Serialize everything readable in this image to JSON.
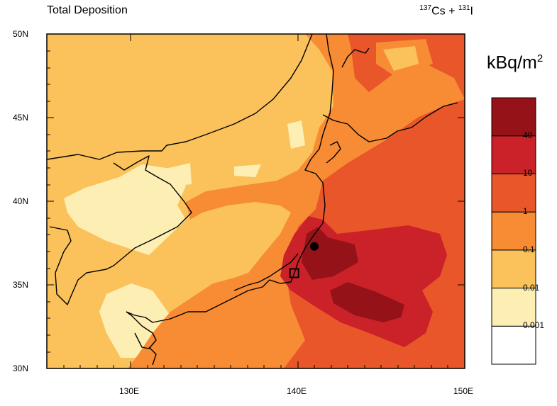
{
  "title": "Total Deposition",
  "species": {
    "iso1": "137",
    "el1": "Cs + ",
    "iso2": "131",
    "el2": "I"
  },
  "unit": {
    "base": "kBq/m",
    "exp": "2"
  },
  "axes": {
    "lat_ticks": [
      "50N",
      "45N",
      "40N",
      "35N",
      "30N"
    ],
    "lon_ticks": [
      "130E",
      "140E",
      "150E"
    ],
    "lat_range": [
      30,
      50
    ],
    "lon_range": [
      125,
      150
    ]
  },
  "legend": {
    "levels": [
      "40",
      "10",
      "1",
      "0.1",
      "0.01",
      "0.001"
    ],
    "colors": [
      "#ffffff",
      "#fdefb3",
      "#fbc25c",
      "#f78c34",
      "#e8562a",
      "#cb2128",
      "#951318"
    ]
  },
  "markers": [
    {
      "type": "circle",
      "lon": 141.0,
      "lat": 37.3
    },
    {
      "type": "square",
      "lon": 139.8,
      "lat": 35.7
    }
  ]
}
